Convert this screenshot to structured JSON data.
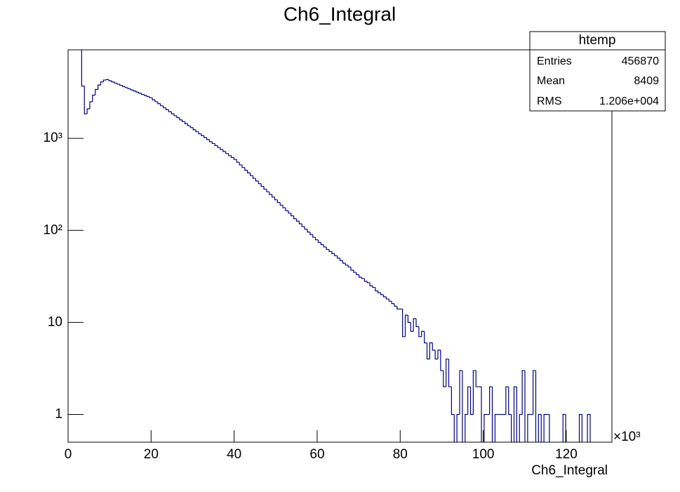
{
  "chart_data": {
    "type": "histogram",
    "title": "Ch6_Integral",
    "x_label": "Ch6_Integral",
    "x_multiplier": "×10³",
    "color": "#000080",
    "log_y": true,
    "xlim": [
      0,
      131
    ],
    "xticks": [
      0,
      20,
      40,
      60,
      80,
      100,
      120
    ],
    "ylim": [
      0.5,
      9160
    ],
    "yticks": [
      1,
      10,
      {
        "value": 100,
        "label": "10²"
      },
      {
        "value": 1000,
        "label": "10³"
      }
    ],
    "bins": [
      0,
      0.655,
      1.31,
      1.965,
      2.62,
      3.275,
      3.93,
      4.585,
      5.24,
      5.895,
      6.55,
      7.205,
      7.86,
      8.515,
      9.17,
      9.825,
      10.48,
      11.135,
      11.79,
      12.445,
      13.1,
      13.755,
      14.41,
      15.065,
      15.72,
      16.375,
      17.03,
      17.685,
      18.34,
      18.995,
      19.65,
      20.305,
      20.96,
      21.615,
      22.27,
      22.925,
      23.58,
      24.235,
      24.89,
      25.545,
      26.2,
      26.855,
      27.51,
      28.165,
      28.82,
      29.475,
      30.13,
      30.785,
      31.44,
      32.095,
      32.75,
      33.405,
      34.06,
      34.715,
      35.37,
      36.025,
      36.68,
      37.335,
      37.99,
      38.645,
      39.3,
      39.955,
      40.61,
      41.265,
      41.92,
      42.575,
      43.23,
      43.885,
      44.54,
      45.195,
      45.85,
      46.505,
      47.16,
      47.815,
      48.47,
      49.125,
      49.78,
      50.435,
      51.09,
      51.745,
      52.4,
      53.055,
      53.71,
      54.365,
      55.02,
      55.675,
      56.33,
      56.985,
      57.64,
      58.295,
      58.95,
      59.605,
      60.26,
      60.915,
      61.57,
      62.225,
      62.88,
      63.535,
      64.19,
      64.845,
      65.5,
      66.155,
      66.81,
      67.465,
      68.12,
      68.775,
      69.43,
      70.085,
      70.74,
      71.395,
      72.05,
      72.705,
      73.36,
      74.015,
      74.67,
      75.325,
      75.98,
      76.635,
      77.29,
      77.945,
      78.6,
      79.255,
      79.91,
      80.565,
      81.22,
      81.875,
      82.53,
      83.185,
      83.84,
      84.495,
      85.15,
      85.805,
      86.46,
      87.115,
      87.77,
      88.425,
      89.08,
      89.735,
      90.39,
      91.045,
      91.7,
      92.355,
      93.01,
      93.665,
      94.32,
      94.975,
      95.63,
      96.285,
      96.94,
      97.595,
      98.25,
      98.905,
      99.56,
      100.215,
      100.87,
      101.525,
      102.18,
      102.835,
      103.49,
      104.145,
      104.8,
      105.455,
      106.11,
      106.765,
      107.42,
      108.075,
      108.73,
      109.385,
      110.04,
      110.695,
      111.35,
      112.005,
      112.66,
      113.315,
      113.97,
      114.625,
      115.28,
      115.935,
      116.59,
      117.245,
      117.9,
      118.555,
      119.21,
      119.865,
      120.52,
      121.175,
      121.83,
      122.485,
      123.14,
      123.795,
      124.45,
      125.105,
      125.76,
      126.415,
      127.07,
      127.725,
      128.38,
      129.035,
      129.69,
      130.345,
      131
    ],
    "values": [
      12000,
      12000,
      12000,
      12000,
      12000,
      3700,
      1850,
      2090,
      2500,
      2950,
      3400,
      3800,
      4100,
      4300,
      4350,
      4230,
      4110,
      3990,
      3880,
      3770,
      3660,
      3560,
      3460,
      3360,
      3270,
      3180,
      3090,
      3000,
      2920,
      2840,
      2760,
      2620,
      2500,
      2380,
      2260,
      2150,
      2050,
      1950,
      1850,
      1760,
      1680,
      1590,
      1520,
      1440,
      1370,
      1310,
      1240,
      1180,
      1120,
      1070,
      1020,
      970,
      920,
      880,
      835,
      795,
      755,
      720,
      685,
      650,
      620,
      590,
      550,
      515,
      482,
      450,
      421,
      394,
      368,
      344,
      322,
      301,
      281,
      263,
      246,
      230,
      215,
      201,
      188,
      176,
      164,
      154,
      144,
      134,
      126,
      118,
      110,
      103,
      96,
      90,
      84,
      79,
      74,
      70,
      66,
      62,
      59,
      56,
      53,
      50,
      47,
      44,
      42,
      40,
      37,
      35,
      33,
      31,
      30,
      28,
      27,
      25,
      24,
      22,
      21,
      20,
      19,
      18,
      17,
      16,
      15,
      14,
      14,
      7,
      12,
      10,
      8,
      11,
      9,
      7,
      8,
      6,
      4,
      6,
      5,
      4,
      5,
      3,
      2,
      4,
      2,
      1,
      0,
      1,
      3,
      0,
      1,
      2,
      1,
      3,
      2,
      2,
      0,
      1,
      1,
      2,
      0,
      1,
      1,
      1,
      1,
      2,
      1,
      0,
      2,
      0,
      1,
      3,
      0,
      1,
      1,
      3,
      0,
      1,
      0,
      1,
      1,
      0,
      0,
      0,
      0,
      0,
      1,
      0,
      0,
      0,
      0,
      0,
      1,
      0,
      0,
      1,
      0,
      0,
      0,
      0,
      0,
      0,
      0,
      0
    ],
    "stats": {
      "title": "htemp",
      "rows": [
        [
          "Entries",
          "456870"
        ],
        [
          "Mean",
          "8409"
        ],
        [
          "RMS",
          "1.206e+004"
        ]
      ]
    }
  }
}
